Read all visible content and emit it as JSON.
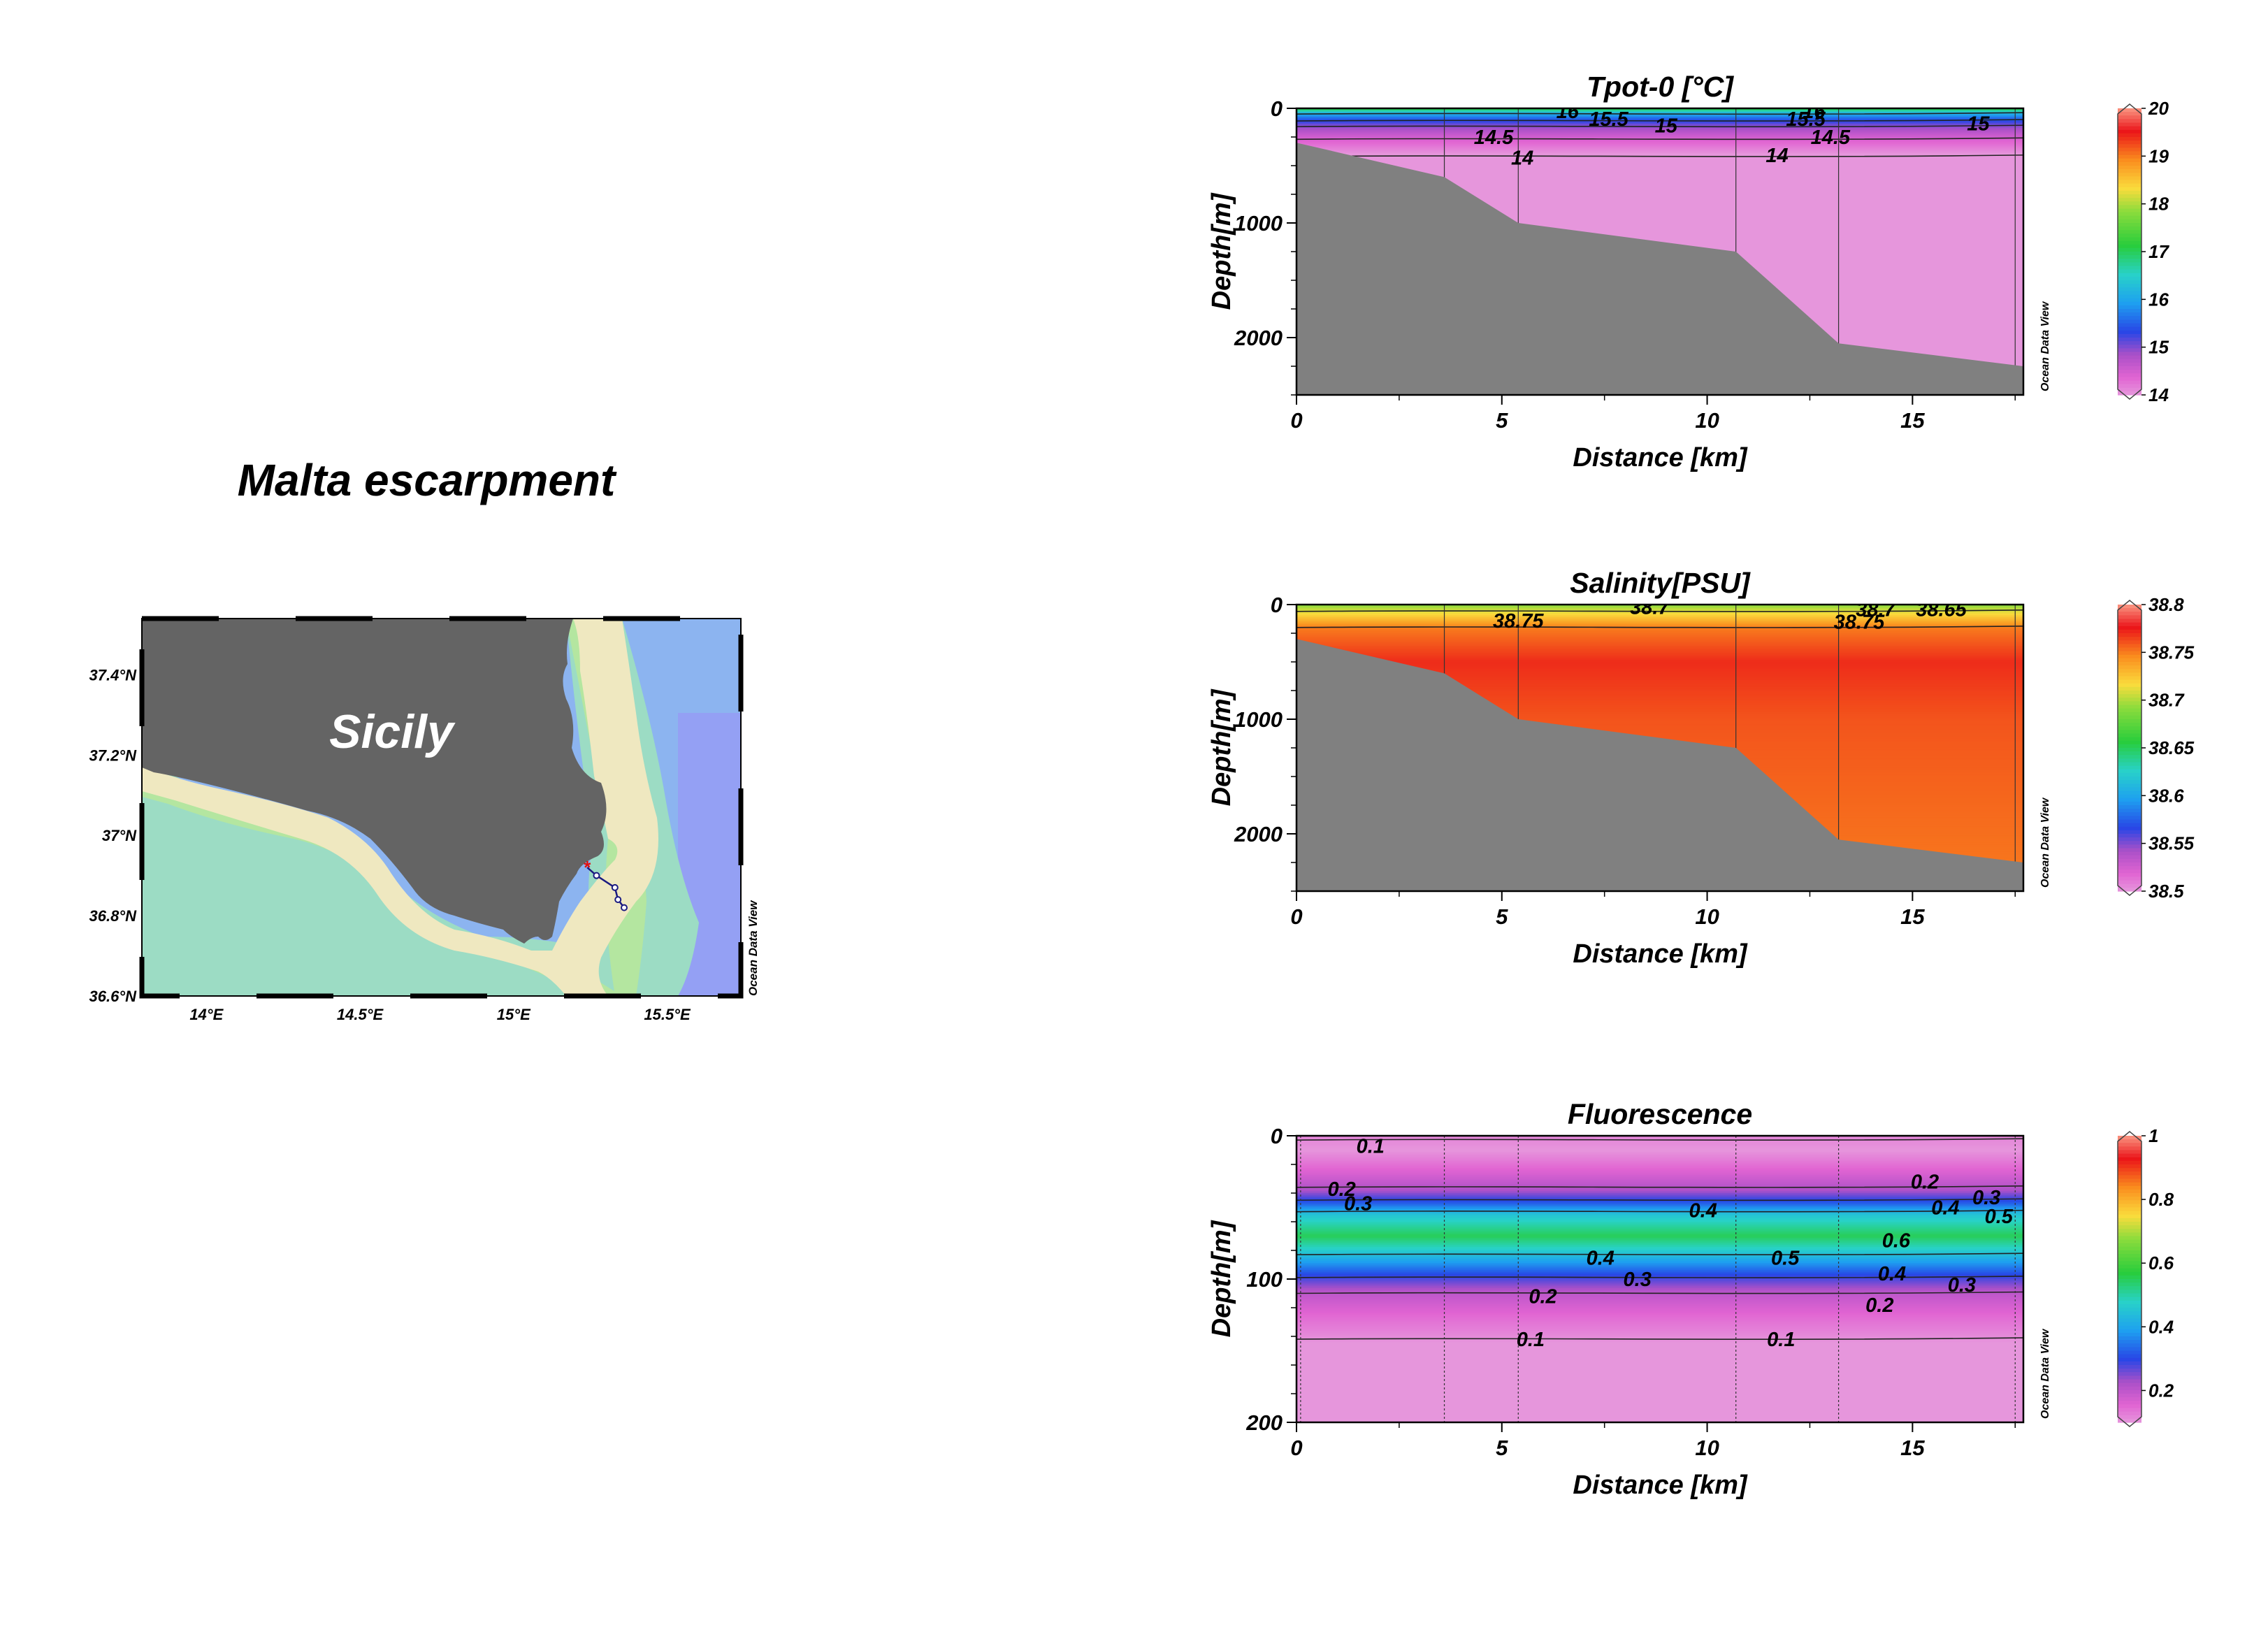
{
  "page": {
    "title": "Malta escarpment"
  },
  "map": {
    "label": "Sicily",
    "lat_ticks": [
      "37.4°N",
      "37.2°N",
      "37°N",
      "36.8°N",
      "36.6°N"
    ],
    "lon_ticks": [
      "14°E",
      "14.5°E",
      "15°E",
      "15.5°E"
    ],
    "watermark": "Ocean Data View",
    "colors": {
      "land": "#646464",
      "coast": "#efe8c0",
      "shallow": "#b4e6a0",
      "mid": "#9cdcc4",
      "deep": "#8cb4f0",
      "deepest": "#94a0f4"
    },
    "stations": [
      {
        "lon": 15.24,
        "lat": 36.92
      },
      {
        "lon": 15.27,
        "lat": 36.9
      },
      {
        "lon": 15.33,
        "lat": 36.87
      },
      {
        "lon": 15.34,
        "lat": 36.84
      },
      {
        "lon": 15.36,
        "lat": 36.82
      }
    ]
  },
  "chart_data": [
    {
      "type": "heatmap",
      "title": "Tpot-0 [°C]",
      "xlabel": "Distance [km]",
      "ylabel": "Depth[m]",
      "xlim": [
        0,
        17.7
      ],
      "ylim": [
        0,
        2500
      ],
      "x_ticks": [
        "0",
        "5",
        "10",
        "15"
      ],
      "y_ticks": [
        "0",
        "1000",
        "2000"
      ],
      "colorbar": {
        "ticks": [
          "20",
          "19",
          "18",
          "17",
          "16",
          "15",
          "14"
        ],
        "range": [
          14,
          20
        ]
      },
      "watermark": "Ocean Data View",
      "stations_km": [
        3.6,
        5.4,
        10.7,
        13.2,
        17.5
      ],
      "bathymetry": {
        "x": [
          0,
          3.6,
          5.4,
          10.7,
          13.2,
          17.7
        ],
        "depth": [
          300,
          600,
          1000,
          1250,
          2050,
          2250
        ]
      },
      "contour_labels": [
        {
          "text": "16",
          "x": 6.6,
          "depth": 25
        },
        {
          "text": "15.5",
          "x": 7.6,
          "depth": 90
        },
        {
          "text": "15",
          "x": 9.0,
          "depth": 150
        },
        {
          "text": "15.5",
          "x": 12.4,
          "depth": 90
        },
        {
          "text": "16",
          "x": 12.6,
          "depth": 25
        },
        {
          "text": "15",
          "x": 16.6,
          "depth": 130
        },
        {
          "text": "14.5",
          "x": 4.8,
          "depth": 250
        },
        {
          "text": "14",
          "x": 5.5,
          "depth": 430
        },
        {
          "text": "14",
          "x": 11.7,
          "depth": 410
        },
        {
          "text": "14.5",
          "x": 13.0,
          "depth": 250
        }
      ],
      "contour_levels": [
        {
          "value": 16,
          "depth": 50
        },
        {
          "value": 15.5,
          "depth": 110
        },
        {
          "value": 15,
          "depth": 160
        },
        {
          "value": 14.5,
          "depth": 270
        },
        {
          "value": 14,
          "depth": 420
        }
      ],
      "profile": [
        {
          "depth": 0,
          "value": 17.2
        },
        {
          "depth": 40,
          "value": 16.2
        },
        {
          "depth": 90,
          "value": 15.5
        },
        {
          "depth": 150,
          "value": 15.0
        },
        {
          "depth": 250,
          "value": 14.5
        },
        {
          "depth": 400,
          "value": 14.0
        },
        {
          "depth": 900,
          "value": 13.9
        },
        {
          "depth": 1500,
          "value": 13.8
        },
        {
          "depth": 2500,
          "value": 13.7
        }
      ]
    },
    {
      "type": "heatmap",
      "title": "Salinity[PSU]",
      "xlabel": "Distance [km]",
      "ylabel": "Depth[m]",
      "xlim": [
        0,
        17.7
      ],
      "ylim": [
        0,
        2500
      ],
      "x_ticks": [
        "0",
        "5",
        "10",
        "15"
      ],
      "y_ticks": [
        "0",
        "1000",
        "2000"
      ],
      "colorbar": {
        "ticks": [
          "38.8",
          "38.75",
          "38.7",
          "38.65",
          "38.6",
          "38.55",
          "38.5"
        ],
        "range": [
          38.5,
          38.8
        ]
      },
      "watermark": "Ocean Data View",
      "stations_km": [
        3.6,
        5.4,
        10.7,
        13.2,
        17.5
      ],
      "bathymetry": {
        "x": [
          0,
          3.6,
          5.4,
          10.7,
          13.2,
          17.7
        ],
        "depth": [
          300,
          600,
          1000,
          1250,
          2050,
          2250
        ]
      },
      "contour_labels": [
        {
          "text": "38.75",
          "x": 5.4,
          "depth": 140
        },
        {
          "text": "38.7",
          "x": 8.6,
          "depth": 20
        },
        {
          "text": "38.7",
          "x": 14.1,
          "depth": 40
        },
        {
          "text": "38.65",
          "x": 15.7,
          "depth": 40
        },
        {
          "text": "38.75",
          "x": 13.7,
          "depth": 150
        }
      ],
      "contour_levels": [
        {
          "value": 38.7,
          "depth": 60
        },
        {
          "value": 38.75,
          "depth": 200
        }
      ],
      "profile": [
        {
          "depth": 0,
          "value": 38.69
        },
        {
          "depth": 60,
          "value": 38.71
        },
        {
          "depth": 200,
          "value": 38.75
        },
        {
          "depth": 500,
          "value": 38.77
        },
        {
          "depth": 1000,
          "value": 38.76
        },
        {
          "depth": 2500,
          "value": 38.75
        }
      ]
    },
    {
      "type": "heatmap",
      "title": "Fluorescence",
      "xlabel": "Distance [km]",
      "ylabel": "Depth[m]",
      "xlim": [
        0,
        17.7
      ],
      "ylim": [
        0,
        200
      ],
      "x_ticks": [
        "0",
        "5",
        "10",
        "15"
      ],
      "y_ticks": [
        "0",
        "100",
        "200"
      ],
      "colorbar": {
        "ticks": [
          "1",
          "0.8",
          "0.6",
          "0.4",
          "0.2"
        ],
        "range": [
          0.1,
          1.0
        ]
      },
      "watermark": "Ocean Data View",
      "stations_km": [
        0.1,
        3.6,
        5.4,
        10.7,
        13.2,
        17.5
      ],
      "contour_labels": [
        {
          "text": "0.1",
          "x": 1.8,
          "depth": 7
        },
        {
          "text": "0.2",
          "x": 1.1,
          "depth": 37
        },
        {
          "text": "0.3",
          "x": 1.5,
          "depth": 47
        },
        {
          "text": "0.4",
          "x": 9.9,
          "depth": 52
        },
        {
          "text": "0.2",
          "x": 15.3,
          "depth": 32
        },
        {
          "text": "0.3",
          "x": 16.8,
          "depth": 43
        },
        {
          "text": "0.4",
          "x": 15.8,
          "depth": 50
        },
        {
          "text": "0.5",
          "x": 17.1,
          "depth": 56
        },
        {
          "text": "0.6",
          "x": 14.6,
          "depth": 73
        },
        {
          "text": "0.5",
          "x": 11.9,
          "depth": 85
        },
        {
          "text": "0.4",
          "x": 7.4,
          "depth": 85
        },
        {
          "text": "0.3",
          "x": 8.3,
          "depth": 100
        },
        {
          "text": "0.4",
          "x": 14.5,
          "depth": 96
        },
        {
          "text": "0.3",
          "x": 16.2,
          "depth": 104
        },
        {
          "text": "0.2",
          "x": 6.0,
          "depth": 112
        },
        {
          "text": "0.2",
          "x": 14.2,
          "depth": 118
        },
        {
          "text": "0.1",
          "x": 5.7,
          "depth": 142
        },
        {
          "text": "0.1",
          "x": 11.8,
          "depth": 142
        }
      ],
      "contour_levels": [
        {
          "value": 0.1,
          "depth": 3
        },
        {
          "value": 0.2,
          "depth": 36
        },
        {
          "value": 0.3,
          "depth": 45
        },
        {
          "value": 0.4,
          "depth": 53
        },
        {
          "value": 0.4,
          "depth": 83
        },
        {
          "value": 0.3,
          "depth": 99
        },
        {
          "value": 0.2,
          "depth": 110
        },
        {
          "value": 0.1,
          "depth": 142
        }
      ],
      "profile": [
        {
          "depth": 0,
          "value": 0.12
        },
        {
          "depth": 10,
          "value": 0.1
        },
        {
          "depth": 25,
          "value": 0.16
        },
        {
          "depth": 38,
          "value": 0.22
        },
        {
          "depth": 47,
          "value": 0.32
        },
        {
          "depth": 55,
          "value": 0.45
        },
        {
          "depth": 70,
          "value": 0.55
        },
        {
          "depth": 82,
          "value": 0.45
        },
        {
          "depth": 97,
          "value": 0.3
        },
        {
          "depth": 110,
          "value": 0.2
        },
        {
          "depth": 125,
          "value": 0.15
        },
        {
          "depth": 145,
          "value": 0.1
        },
        {
          "depth": 200,
          "value": 0.08
        }
      ]
    }
  ]
}
